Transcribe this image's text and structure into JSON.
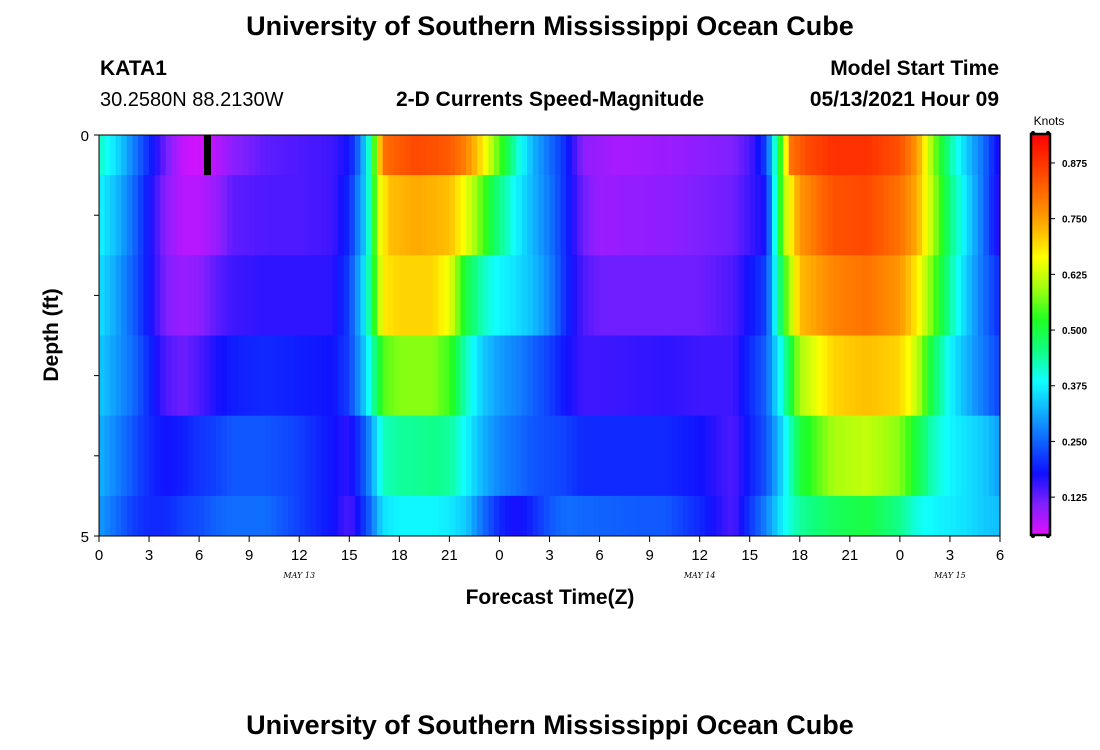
{
  "page": {
    "title_top": "University of Southern Mississippi Ocean Cube",
    "title_bottom": "University of Southern Mississippi Ocean Cube",
    "station": "KATA1",
    "coords": "30.2580N  88.2130W",
    "model_start_label": "Model Start Time",
    "model_start_value": "05/13/2021 Hour 09"
  },
  "chart_data": {
    "type": "heatmap",
    "title": "2-D Currents Speed-Magnitude",
    "xlabel": "Forecast Time(Z)",
    "ylabel": "Depth (ft)",
    "x_range_hours": [
      0,
      54
    ],
    "y_range": [
      0,
      5
    ],
    "x_tick_labels": [
      "0",
      "3",
      "6",
      "9",
      "12",
      "15",
      "18",
      "21",
      "0",
      "3",
      "6",
      "9",
      "12",
      "15",
      "18",
      "21",
      "0",
      "3",
      "6"
    ],
    "y_tick_labels": [
      "0",
      "5"
    ],
    "date_labels": [
      {
        "label": "MAY 13",
        "hour": 12
      },
      {
        "label": "MAY 14",
        "hour": 36
      },
      {
        "label": "MAY 15",
        "hour": 51
      }
    ],
    "colorbar": {
      "units": "Knots",
      "min": 0.04,
      "max": 0.94,
      "tick_values": [
        0.125,
        0.25,
        0.375,
        0.5,
        0.625,
        0.75,
        0.875
      ],
      "tick_labels": [
        "0.125",
        "0.250",
        "0.375",
        "0.500",
        "0.625",
        "0.750",
        "0.875"
      ],
      "colors": [
        "#e010ff",
        "#8020ff",
        "#1010ff",
        "#1060ff",
        "#10b0ff",
        "#10ffff",
        "#10ff80",
        "#20ff20",
        "#a0ff10",
        "#ffff00",
        "#ffb000",
        "#ff7000",
        "#ff3800",
        "#ff0000"
      ]
    },
    "layers": [
      {
        "depth_range": [
          0,
          0.5
        ],
        "keypoints": [
          [
            0,
            0.42
          ],
          [
            1,
            0.36
          ],
          [
            2,
            0.28
          ],
          [
            3,
            0.2
          ],
          [
            4,
            0.12
          ],
          [
            5,
            0.06
          ],
          [
            6,
            0.05
          ],
          [
            7,
            0.07
          ],
          [
            8,
            0.1
          ],
          [
            10,
            0.13
          ],
          [
            12,
            0.14
          ],
          [
            14,
            0.15
          ],
          [
            15,
            0.18
          ],
          [
            15.7,
            0.28
          ],
          [
            16.3,
            0.45
          ],
          [
            17,
            0.8
          ],
          [
            18,
            0.83
          ],
          [
            19,
            0.85
          ],
          [
            21,
            0.83
          ],
          [
            22,
            0.78
          ],
          [
            23,
            0.68
          ],
          [
            24,
            0.55
          ],
          [
            25,
            0.42
          ],
          [
            26,
            0.32
          ],
          [
            27,
            0.26
          ],
          [
            28,
            0.2
          ],
          [
            29,
            0.1
          ],
          [
            31,
            0.08
          ],
          [
            34,
            0.09
          ],
          [
            36,
            0.1
          ],
          [
            38,
            0.11
          ],
          [
            39,
            0.14
          ],
          [
            40,
            0.22
          ],
          [
            40.7,
            0.48
          ],
          [
            41.5,
            0.8
          ],
          [
            42.5,
            0.85
          ],
          [
            44,
            0.88
          ],
          [
            46,
            0.88
          ],
          [
            48,
            0.84
          ],
          [
            49,
            0.76
          ],
          [
            50,
            0.58
          ],
          [
            51,
            0.44
          ],
          [
            52,
            0.34
          ],
          [
            53,
            0.26
          ],
          [
            54,
            0.16
          ]
        ]
      },
      {
        "depth_range": [
          0.5,
          1.5
        ],
        "keypoints": [
          [
            0,
            0.38
          ],
          [
            1,
            0.33
          ],
          [
            2,
            0.26
          ],
          [
            3,
            0.18
          ],
          [
            4,
            0.1
          ],
          [
            5,
            0.07
          ],
          [
            6,
            0.07
          ],
          [
            7,
            0.09
          ],
          [
            8,
            0.13
          ],
          [
            10,
            0.14
          ],
          [
            12,
            0.14
          ],
          [
            14,
            0.15
          ],
          [
            15,
            0.2
          ],
          [
            16,
            0.35
          ],
          [
            16.8,
            0.65
          ],
          [
            17.5,
            0.72
          ],
          [
            19,
            0.74
          ],
          [
            21,
            0.72
          ],
          [
            22,
            0.65
          ],
          [
            23,
            0.55
          ],
          [
            24,
            0.45
          ],
          [
            25,
            0.38
          ],
          [
            26,
            0.32
          ],
          [
            27,
            0.27
          ],
          [
            28,
            0.2
          ],
          [
            29,
            0.12
          ],
          [
            30,
            0.09
          ],
          [
            34,
            0.1
          ],
          [
            36,
            0.11
          ],
          [
            38,
            0.12
          ],
          [
            40,
            0.18
          ],
          [
            41,
            0.6
          ],
          [
            42,
            0.76
          ],
          [
            44,
            0.84
          ],
          [
            46,
            0.85
          ],
          [
            48,
            0.8
          ],
          [
            49,
            0.74
          ],
          [
            50,
            0.6
          ],
          [
            51,
            0.46
          ],
          [
            52,
            0.36
          ],
          [
            53,
            0.26
          ],
          [
            54,
            0.15
          ]
        ]
      },
      {
        "depth_range": [
          1.5,
          2.5
        ],
        "keypoints": [
          [
            0,
            0.36
          ],
          [
            1,
            0.31
          ],
          [
            2,
            0.25
          ],
          [
            3,
            0.18
          ],
          [
            4,
            0.11
          ],
          [
            5,
            0.09
          ],
          [
            6,
            0.1
          ],
          [
            7,
            0.13
          ],
          [
            8,
            0.15
          ],
          [
            10,
            0.16
          ],
          [
            12,
            0.16
          ],
          [
            14,
            0.16
          ],
          [
            15,
            0.22
          ],
          [
            16,
            0.38
          ],
          [
            17,
            0.68
          ],
          [
            18,
            0.7
          ],
          [
            20,
            0.7
          ],
          [
            21,
            0.65
          ],
          [
            22,
            0.5
          ],
          [
            23,
            0.42
          ],
          [
            24,
            0.38
          ],
          [
            25,
            0.36
          ],
          [
            26,
            0.33
          ],
          [
            27,
            0.28
          ],
          [
            28,
            0.2
          ],
          [
            29,
            0.14
          ],
          [
            30,
            0.12
          ],
          [
            34,
            0.12
          ],
          [
            36,
            0.12
          ],
          [
            38,
            0.14
          ],
          [
            40,
            0.22
          ],
          [
            41,
            0.52
          ],
          [
            42,
            0.72
          ],
          [
            44,
            0.78
          ],
          [
            46,
            0.8
          ],
          [
            48,
            0.76
          ],
          [
            49,
            0.68
          ],
          [
            50,
            0.56
          ],
          [
            51,
            0.44
          ],
          [
            52,
            0.34
          ],
          [
            53,
            0.26
          ],
          [
            54,
            0.2
          ]
        ]
      },
      {
        "depth_range": [
          2.5,
          3.5
        ],
        "keypoints": [
          [
            0,
            0.34
          ],
          [
            1,
            0.3
          ],
          [
            2,
            0.26
          ],
          [
            3,
            0.2
          ],
          [
            4,
            0.14
          ],
          [
            5,
            0.12
          ],
          [
            6,
            0.14
          ],
          [
            7,
            0.17
          ],
          [
            8,
            0.19
          ],
          [
            10,
            0.2
          ],
          [
            12,
            0.19
          ],
          [
            14,
            0.18
          ],
          [
            15,
            0.22
          ],
          [
            16,
            0.35
          ],
          [
            17,
            0.55
          ],
          [
            18,
            0.58
          ],
          [
            20,
            0.58
          ],
          [
            21,
            0.54
          ],
          [
            22,
            0.42
          ],
          [
            23,
            0.34
          ],
          [
            24,
            0.3
          ],
          [
            25,
            0.28
          ],
          [
            26,
            0.25
          ],
          [
            27,
            0.22
          ],
          [
            28,
            0.18
          ],
          [
            29,
            0.15
          ],
          [
            30,
            0.15
          ],
          [
            34,
            0.16
          ],
          [
            36,
            0.15
          ],
          [
            38,
            0.15
          ],
          [
            40,
            0.25
          ],
          [
            41,
            0.42
          ],
          [
            42,
            0.6
          ],
          [
            44,
            0.7
          ],
          [
            46,
            0.72
          ],
          [
            48,
            0.7
          ],
          [
            49,
            0.62
          ],
          [
            50,
            0.48
          ],
          [
            51,
            0.38
          ],
          [
            52,
            0.32
          ],
          [
            53,
            0.27
          ],
          [
            54,
            0.22
          ]
        ]
      },
      {
        "depth_range": [
          3.5,
          4.5
        ],
        "keypoints": [
          [
            0,
            0.32
          ],
          [
            1,
            0.28
          ],
          [
            2,
            0.24
          ],
          [
            3,
            0.2
          ],
          [
            4,
            0.18
          ],
          [
            5,
            0.19
          ],
          [
            6,
            0.21
          ],
          [
            7,
            0.22
          ],
          [
            8,
            0.24
          ],
          [
            10,
            0.24
          ],
          [
            12,
            0.22
          ],
          [
            14,
            0.18
          ],
          [
            15,
            0.16
          ],
          [
            16,
            0.25
          ],
          [
            17,
            0.42
          ],
          [
            18,
            0.44
          ],
          [
            20,
            0.45
          ],
          [
            21,
            0.44
          ],
          [
            22,
            0.38
          ],
          [
            23,
            0.32
          ],
          [
            24,
            0.28
          ],
          [
            25,
            0.26
          ],
          [
            26,
            0.24
          ],
          [
            27,
            0.23
          ],
          [
            28,
            0.22
          ],
          [
            29,
            0.2
          ],
          [
            30,
            0.2
          ],
          [
            34,
            0.2
          ],
          [
            36,
            0.18
          ],
          [
            38,
            0.14
          ],
          [
            40,
            0.24
          ],
          [
            41,
            0.36
          ],
          [
            42,
            0.5
          ],
          [
            44,
            0.6
          ],
          [
            46,
            0.62
          ],
          [
            48,
            0.58
          ],
          [
            49,
            0.5
          ],
          [
            50,
            0.42
          ],
          [
            51,
            0.38
          ],
          [
            52,
            0.36
          ],
          [
            53,
            0.34
          ],
          [
            54,
            0.3
          ]
        ]
      },
      {
        "depth_range": [
          4.5,
          5
        ],
        "keypoints": [
          [
            0,
            0.3
          ],
          [
            1,
            0.26
          ],
          [
            2,
            0.22
          ],
          [
            3,
            0.2
          ],
          [
            4,
            0.2
          ],
          [
            5,
            0.22
          ],
          [
            6,
            0.23
          ],
          [
            7,
            0.25
          ],
          [
            8,
            0.26
          ],
          [
            10,
            0.26
          ],
          [
            12,
            0.22
          ],
          [
            14,
            0.18
          ],
          [
            15,
            0.14
          ],
          [
            16,
            0.22
          ],
          [
            17,
            0.36
          ],
          [
            18,
            0.38
          ],
          [
            20,
            0.38
          ],
          [
            21,
            0.37
          ],
          [
            22,
            0.34
          ],
          [
            23,
            0.26
          ],
          [
            24,
            0.2
          ],
          [
            25,
            0.17
          ],
          [
            26,
            0.2
          ],
          [
            27,
            0.24
          ],
          [
            28,
            0.26
          ],
          [
            30,
            0.25
          ],
          [
            34,
            0.24
          ],
          [
            36,
            0.2
          ],
          [
            38,
            0.14
          ],
          [
            40,
            0.28
          ],
          [
            41,
            0.38
          ],
          [
            42,
            0.44
          ],
          [
            44,
            0.48
          ],
          [
            46,
            0.5
          ],
          [
            48,
            0.45
          ],
          [
            49,
            0.4
          ],
          [
            50,
            0.38
          ],
          [
            51,
            0.37
          ],
          [
            52,
            0.36
          ],
          [
            53,
            0.34
          ],
          [
            54,
            0.33
          ]
        ]
      }
    ],
    "marker": {
      "hour": 6.5,
      "depth_range": [
        0,
        0.5
      ],
      "color": "#000000"
    }
  }
}
